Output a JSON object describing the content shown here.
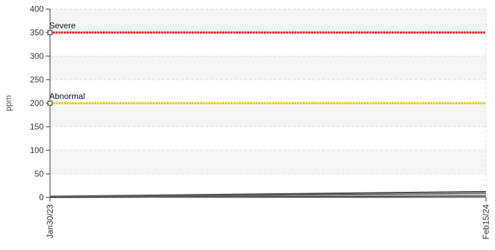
{
  "chart_data": {
    "type": "line",
    "title": "",
    "xlabel": "",
    "ylabel": "ppm",
    "ylim": [
      0,
      400
    ],
    "y_ticks": [
      0,
      50,
      100,
      150,
      200,
      250,
      300,
      350,
      400
    ],
    "x_tick_labels": [
      "Jan30/23",
      "Feb15/24"
    ],
    "grid": true,
    "legend": "none",
    "thresholds": [
      {
        "label": "Severe",
        "value": 350,
        "color": "#e8141c"
      },
      {
        "label": "Abnormal",
        "value": 200,
        "color": "#f0c800"
      }
    ],
    "series": [
      {
        "color": "#444444",
        "x": [
          "Jan30/23",
          "Feb15/24"
        ],
        "values": [
          2,
          12
        ]
      },
      {
        "color": "#666666",
        "x": [
          "Jan30/23",
          "Feb15/24"
        ],
        "values": [
          1,
          8
        ]
      },
      {
        "color": "#555555",
        "x": [
          "Jan30/23",
          "Feb15/24"
        ],
        "values": [
          0,
          3
        ]
      }
    ],
    "colors": {
      "band": "#f5f5f5",
      "grid": "#dddddd",
      "axis": "#333333"
    }
  }
}
